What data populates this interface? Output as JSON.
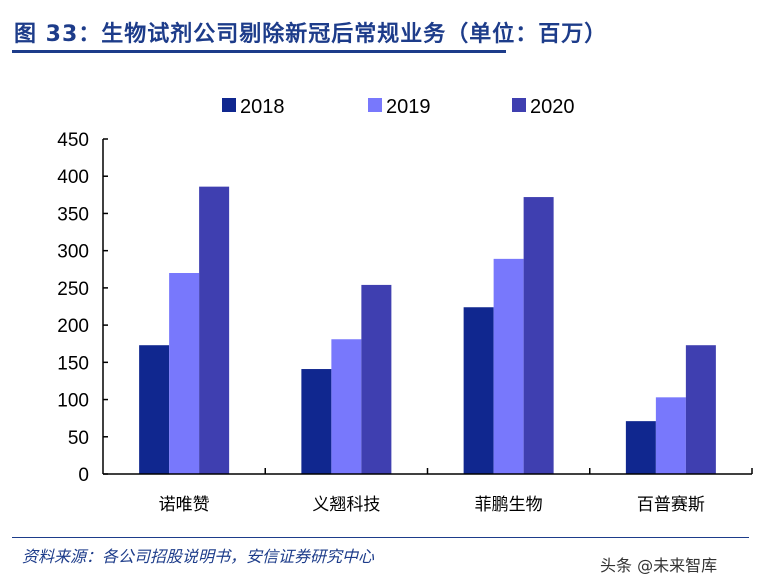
{
  "title": "图 33：生物试剂公司剔除新冠后常规业务（单位：百万）",
  "source": "资料来源：各公司招股说明书，安信证券研究中心",
  "watermark": "头条 @未来智库",
  "chart_data": {
    "type": "bar",
    "title": "图 33：生物试剂公司剔除新冠后常规业务（单位：百万）",
    "categories": [
      "诺唯赞",
      "义翘科技",
      "菲鹏生物",
      "百普赛斯"
    ],
    "series": [
      {
        "name": "2018",
        "color": "#10278f",
        "values": [
          173,
          141,
          224,
          71
        ]
      },
      {
        "name": "2019",
        "color": "#7878fc",
        "values": [
          270,
          181,
          289,
          103
        ]
      },
      {
        "name": "2020",
        "color": "#3f3fb0",
        "values": [
          386,
          254,
          372,
          173
        ]
      }
    ],
    "yticks": [
      0,
      50,
      100,
      150,
      200,
      250,
      300,
      350,
      400,
      450
    ],
    "ylim": [
      0,
      450
    ],
    "xlabel": "",
    "ylabel": "",
    "grid": false,
    "legend": "top"
  }
}
